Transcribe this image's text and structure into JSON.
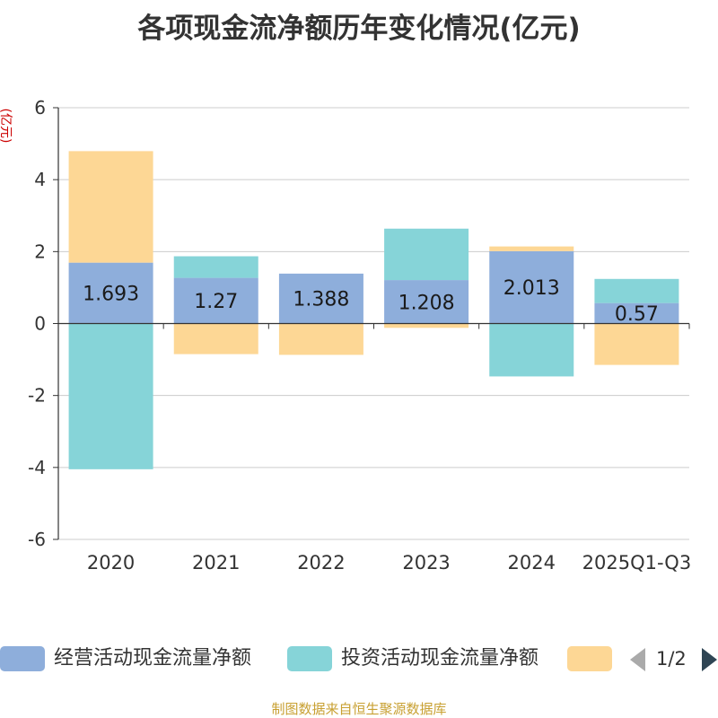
{
  "title": "各项现金流净额历年变化情况(亿元)",
  "unit_label": "(亿元)",
  "source": "制图数据来自恒生聚源数据库",
  "legend": {
    "items": [
      {
        "label": "经营活动现金流量净额",
        "color": "#8eaedb"
      },
      {
        "label": "投资活动现金流量净额",
        "color": "#86d4d8"
      },
      {
        "label": "",
        "color": "#fdd795"
      }
    ],
    "pager": "1/2"
  },
  "chart_data": {
    "type": "bar",
    "stacked": true,
    "categories": [
      "2020",
      "2021",
      "2022",
      "2023",
      "2024",
      "2025Q1-Q3"
    ],
    "ylim": [
      -6,
      6
    ],
    "yticks": [
      -6,
      -4,
      -2,
      0,
      2,
      4,
      6
    ],
    "grid": true,
    "series": [
      {
        "name": "经营活动现金流量净额",
        "color": "#8eaedb",
        "values": [
          1.693,
          1.27,
          1.388,
          1.208,
          2.013,
          0.57
        ],
        "show_labels": true
      },
      {
        "name": "投资活动现金流量净额",
        "color": "#86d4d8",
        "values": [
          -4.05,
          0.6,
          0.0,
          1.43,
          -1.47,
          0.67
        ],
        "show_labels": false
      },
      {
        "name": "",
        "color": "#fdd795",
        "values": [
          3.1,
          -0.85,
          -0.87,
          -0.12,
          0.13,
          -1.15
        ],
        "show_labels": false
      }
    ]
  }
}
